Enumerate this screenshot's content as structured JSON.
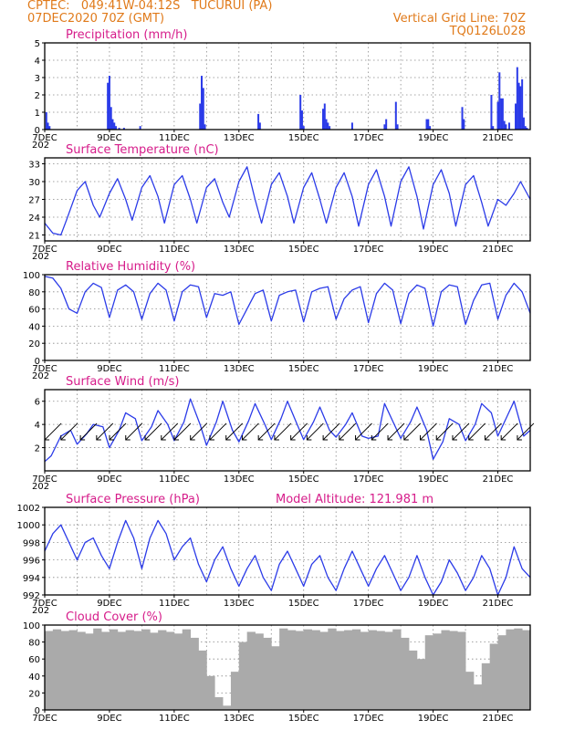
{
  "header": {
    "line1": "CPTEC:   049:41W-04:12S   TUCURUI (PA)",
    "line2_left": "07DEC2020 70Z (GMT)",
    "line2_right": "Vertical Grid Line: 70Z",
    "line3_right": "TQ0126L028"
  },
  "colors": {
    "header": "#e07a1a",
    "title": "#d61c8a",
    "line": "#2b3be8",
    "bar": "#2b3be8",
    "cloud": "#aaaaaa"
  },
  "x_axis": {
    "day_min": 7,
    "day_max": 22,
    "ticks": [
      {
        "day": 7,
        "label": "7DEC"
      },
      {
        "day": 9,
        "label": "9DEC"
      },
      {
        "day": 11,
        "label": "11DEC"
      },
      {
        "day": 13,
        "label": "13DEC"
      },
      {
        "day": 15,
        "label": "15DEC"
      },
      {
        "day": 17,
        "label": "17DEC"
      },
      {
        "day": 19,
        "label": "19DEC"
      },
      {
        "day": 21,
        "label": "21DEC"
      }
    ],
    "year_stub": "202"
  },
  "chart_data": [
    {
      "type": "bar",
      "title": "Precipitation (mm/h)",
      "ylim": [
        0,
        5
      ],
      "yticks": [
        0,
        1,
        2,
        3,
        4,
        5
      ],
      "x_unit": "day of December 2020",
      "x": [
        7.05,
        7.1,
        7.15,
        8.95,
        9.0,
        9.05,
        9.1,
        9.15,
        9.2,
        9.3,
        9.45,
        9.95,
        11.8,
        11.85,
        11.9,
        11.95,
        13.6,
        13.65,
        14.9,
        14.95,
        15.0,
        15.6,
        15.65,
        15.7,
        15.75,
        15.8,
        16.5,
        17.5,
        17.55,
        17.85,
        17.9,
        18.8,
        18.85,
        18.9,
        19.9,
        19.95,
        20.8,
        20.85,
        21.0,
        21.05,
        21.1,
        21.15,
        21.2,
        21.25,
        21.35,
        21.55,
        21.6,
        21.65,
        21.7,
        21.75,
        21.8,
        21.85,
        21.9
      ],
      "values": [
        1.0,
        0.4,
        0.2,
        2.7,
        3.1,
        1.3,
        0.6,
        0.4,
        0.2,
        0.1,
        0.1,
        0.2,
        1.5,
        3.1,
        2.4,
        0.3,
        0.9,
        0.4,
        2.0,
        1.1,
        0.2,
        1.2,
        1.5,
        0.6,
        0.4,
        0.2,
        0.4,
        0.3,
        0.6,
        1.6,
        0.3,
        0.6,
        0.6,
        0.2,
        1.3,
        0.6,
        2.0,
        0.2,
        1.6,
        3.3,
        1.8,
        1.8,
        0.5,
        0.3,
        0.4,
        1.5,
        3.6,
        2.7,
        2.5,
        2.9,
        0.7,
        0.2,
        0.1
      ]
    },
    {
      "type": "line",
      "title": "Surface Temperature (nC)",
      "ylim": [
        20,
        34
      ],
      "yticks": [
        21,
        24,
        27,
        30,
        33
      ],
      "x_unit": "day of December 2020",
      "x": [
        7.0,
        7.25,
        7.5,
        7.67,
        8.0,
        8.25,
        8.5,
        8.7,
        9.0,
        9.25,
        9.5,
        9.7,
        10.0,
        10.25,
        10.5,
        10.7,
        11.0,
        11.25,
        11.5,
        11.7,
        12.0,
        12.25,
        12.5,
        12.7,
        13.0,
        13.25,
        13.5,
        13.7,
        14.0,
        14.25,
        14.5,
        14.7,
        15.0,
        15.25,
        15.5,
        15.7,
        16.0,
        16.25,
        16.5,
        16.7,
        17.0,
        17.25,
        17.5,
        17.7,
        18.0,
        18.25,
        18.5,
        18.7,
        19.0,
        19.25,
        19.5,
        19.7,
        20.0,
        20.25,
        20.5,
        20.7,
        21.0,
        21.25,
        21.5,
        21.7,
        22.0
      ],
      "values": [
        23.0,
        21.3,
        21.0,
        23.5,
        28.5,
        30.0,
        26.0,
        24.0,
        28.0,
        30.5,
        27.0,
        23.5,
        29.0,
        31.0,
        27.5,
        23.0,
        29.5,
        31.0,
        27.0,
        23.0,
        29.0,
        30.5,
        26.5,
        24.0,
        30.0,
        32.5,
        27.0,
        23.0,
        29.5,
        31.5,
        27.5,
        23.0,
        29.0,
        31.5,
        27.0,
        23.0,
        29.0,
        31.5,
        27.5,
        22.5,
        29.5,
        32.0,
        27.5,
        22.5,
        30.0,
        32.5,
        27.5,
        22.0,
        29.5,
        32.0,
        28.0,
        22.5,
        29.5,
        31.0,
        26.5,
        22.5,
        27.0,
        26.0,
        28.0,
        30.0,
        27.0
      ]
    },
    {
      "type": "line",
      "title": "Relative Humidity (%)",
      "ylim": [
        0,
        100
      ],
      "yticks": [
        0,
        20,
        40,
        60,
        80,
        100
      ],
      "x_unit": "day of December 2020",
      "x": [
        7.0,
        7.25,
        7.5,
        7.75,
        8.0,
        8.25,
        8.5,
        8.75,
        9.0,
        9.25,
        9.5,
        9.75,
        10.0,
        10.25,
        10.5,
        10.75,
        11.0,
        11.25,
        11.5,
        11.75,
        12.0,
        12.25,
        12.5,
        12.75,
        13.0,
        13.25,
        13.5,
        13.75,
        14.0,
        14.25,
        14.5,
        14.75,
        15.0,
        15.25,
        15.5,
        15.75,
        16.0,
        16.25,
        16.5,
        16.75,
        17.0,
        17.25,
        17.5,
        17.75,
        18.0,
        18.25,
        18.5,
        18.75,
        19.0,
        19.25,
        19.5,
        19.75,
        20.0,
        20.25,
        20.5,
        20.75,
        21.0,
        21.25,
        21.5,
        21.75,
        22.0
      ],
      "values": [
        98,
        96,
        84,
        60,
        55,
        80,
        90,
        85,
        50,
        82,
        88,
        80,
        48,
        78,
        90,
        82,
        46,
        80,
        88,
        86,
        50,
        78,
        76,
        80,
        42,
        60,
        78,
        82,
        46,
        76,
        80,
        82,
        45,
        80,
        84,
        86,
        48,
        72,
        82,
        86,
        44,
        78,
        90,
        82,
        43,
        78,
        88,
        84,
        40,
        80,
        88,
        86,
        42,
        70,
        88,
        90,
        48,
        76,
        90,
        80,
        55
      ]
    },
    {
      "type": "line",
      "title": "Surface Wind (m/s)",
      "ylim": [
        0,
        7
      ],
      "yticks": [
        2,
        4,
        6
      ],
      "x_unit": "day of December 2020",
      "x": [
        7.0,
        7.2,
        7.5,
        7.8,
        8.0,
        8.3,
        8.5,
        8.8,
        9.0,
        9.3,
        9.5,
        9.8,
        10.0,
        10.3,
        10.5,
        10.8,
        11.0,
        11.3,
        11.5,
        11.8,
        12.0,
        12.3,
        12.5,
        12.8,
        13.0,
        13.3,
        13.5,
        13.8,
        14.0,
        14.3,
        14.5,
        14.8,
        15.0,
        15.3,
        15.5,
        15.8,
        16.0,
        16.3,
        16.5,
        16.8,
        17.0,
        17.3,
        17.5,
        17.8,
        18.0,
        18.3,
        18.5,
        18.8,
        19.0,
        19.3,
        19.5,
        19.8,
        20.0,
        20.3,
        20.5,
        20.8,
        21.0,
        21.3,
        21.5,
        21.8,
        22.0
      ],
      "values": [
        0.8,
        1.3,
        3.0,
        3.5,
        2.3,
        3.2,
        4.0,
        3.8,
        2.0,
        3.5,
        5.0,
        4.5,
        2.6,
        3.8,
        5.2,
        4.0,
        2.6,
        4.2,
        6.2,
        4.0,
        2.2,
        4.2,
        6.0,
        3.5,
        2.5,
        4.3,
        5.8,
        4.0,
        2.7,
        4.5,
        6.0,
        4.0,
        2.7,
        4.2,
        5.5,
        3.5,
        2.9,
        4.0,
        5.0,
        3.0,
        2.8,
        3.0,
        5.8,
        4.0,
        2.8,
        4.2,
        5.5,
        3.5,
        1.0,
        2.5,
        4.5,
        4.0,
        2.6,
        4.0,
        5.8,
        5.0,
        3.0,
        4.8,
        6.0,
        3.0,
        3.5
      ],
      "wind_arrow_days": [
        7.2,
        7.7,
        8.3,
        8.8,
        9.2,
        9.7,
        10.3,
        10.8,
        11.2,
        11.7,
        12.3,
        12.8,
        13.3,
        13.8,
        14.3,
        14.8,
        15.3,
        15.8,
        16.3,
        16.8,
        17.3,
        17.8,
        18.3,
        18.8,
        19.3,
        19.8,
        20.3,
        20.8,
        21.3,
        21.8
      ],
      "wind_arrow_dirs": [
        "ne",
        "ne",
        "ne",
        "ne",
        "ne",
        "ne",
        "ne",
        "ne",
        "ne",
        "ne",
        "ne",
        "ne",
        "ne",
        "ne",
        "ne",
        "ne",
        "ne",
        "ne",
        "ne",
        "ne",
        "ne",
        "ne",
        "ne",
        "ne",
        "ne",
        "ne",
        "ne",
        "ne",
        "ne",
        "ne"
      ]
    },
    {
      "type": "line",
      "title": "Surface Pressure (hPa)",
      "annotation": "Model Altitude: 121.981 m",
      "ylim": [
        992,
        1002
      ],
      "yticks": [
        992,
        994,
        996,
        998,
        1000,
        1002
      ],
      "x_unit": "day of December 2020",
      "x": [
        7.0,
        7.25,
        7.5,
        7.75,
        8.0,
        8.25,
        8.5,
        8.75,
        9.0,
        9.25,
        9.5,
        9.75,
        10.0,
        10.25,
        10.5,
        10.75,
        11.0,
        11.25,
        11.5,
        11.75,
        12.0,
        12.25,
        12.5,
        12.75,
        13.0,
        13.25,
        13.5,
        13.75,
        14.0,
        14.25,
        14.5,
        14.75,
        15.0,
        15.25,
        15.5,
        15.75,
        16.0,
        16.25,
        16.5,
        16.75,
        17.0,
        17.25,
        17.5,
        17.75,
        18.0,
        18.25,
        18.5,
        18.75,
        19.0,
        19.25,
        19.5,
        19.75,
        20.0,
        20.25,
        20.5,
        20.75,
        21.0,
        21.25,
        21.5,
        21.75,
        22.0
      ],
      "values": [
        997.0,
        999.0,
        1000.0,
        998.0,
        996.0,
        998.0,
        998.5,
        996.5,
        995.0,
        998.0,
        1000.5,
        998.5,
        995.0,
        998.5,
        1000.5,
        999.0,
        996.0,
        997.5,
        998.5,
        995.5,
        993.5,
        996.0,
        997.5,
        995.0,
        993.0,
        995.0,
        996.5,
        994.0,
        992.5,
        995.5,
        997.0,
        995.0,
        993.0,
        995.5,
        996.5,
        994.0,
        992.5,
        995.0,
        997.0,
        995.0,
        993.0,
        995.0,
        996.5,
        994.5,
        992.5,
        994.0,
        996.5,
        994.0,
        992.0,
        993.5,
        996.0,
        994.5,
        992.5,
        994.0,
        996.5,
        995.0,
        992.0,
        994.0,
        997.5,
        995.0,
        994.0
      ]
    },
    {
      "type": "bar",
      "title": "Cloud Cover (%)",
      "ylim": [
        0,
        100
      ],
      "yticks": [
        0,
        20,
        40,
        60,
        80,
        100
      ],
      "x_unit": "day of December 2020",
      "x": [
        7.0,
        7.25,
        7.5,
        7.75,
        8.0,
        8.25,
        8.5,
        8.75,
        9.0,
        9.25,
        9.5,
        9.75,
        10.0,
        10.25,
        10.5,
        10.75,
        11.0,
        11.25,
        11.5,
        11.75,
        12.0,
        12.25,
        12.5,
        12.75,
        13.0,
        13.25,
        13.5,
        13.75,
        14.0,
        14.25,
        14.5,
        14.75,
        15.0,
        15.25,
        15.5,
        15.75,
        16.0,
        16.25,
        16.5,
        16.75,
        17.0,
        17.25,
        17.5,
        17.75,
        18.0,
        18.25,
        18.5,
        18.75,
        19.0,
        19.25,
        19.5,
        19.75,
        20.0,
        20.25,
        20.5,
        20.75,
        21.0,
        21.25,
        21.5,
        21.75
      ],
      "values": [
        93,
        95,
        93,
        94,
        92,
        90,
        96,
        92,
        95,
        92,
        94,
        93,
        95,
        91,
        94,
        92,
        90,
        95,
        85,
        70,
        40,
        15,
        5,
        45,
        80,
        92,
        90,
        85,
        75,
        96,
        94,
        93,
        95,
        94,
        92,
        96,
        93,
        94,
        95,
        92,
        94,
        93,
        92,
        95,
        85,
        70,
        60,
        88,
        90,
        94,
        93,
        92,
        45,
        30,
        55,
        78,
        88,
        95,
        96,
        94
      ]
    }
  ]
}
